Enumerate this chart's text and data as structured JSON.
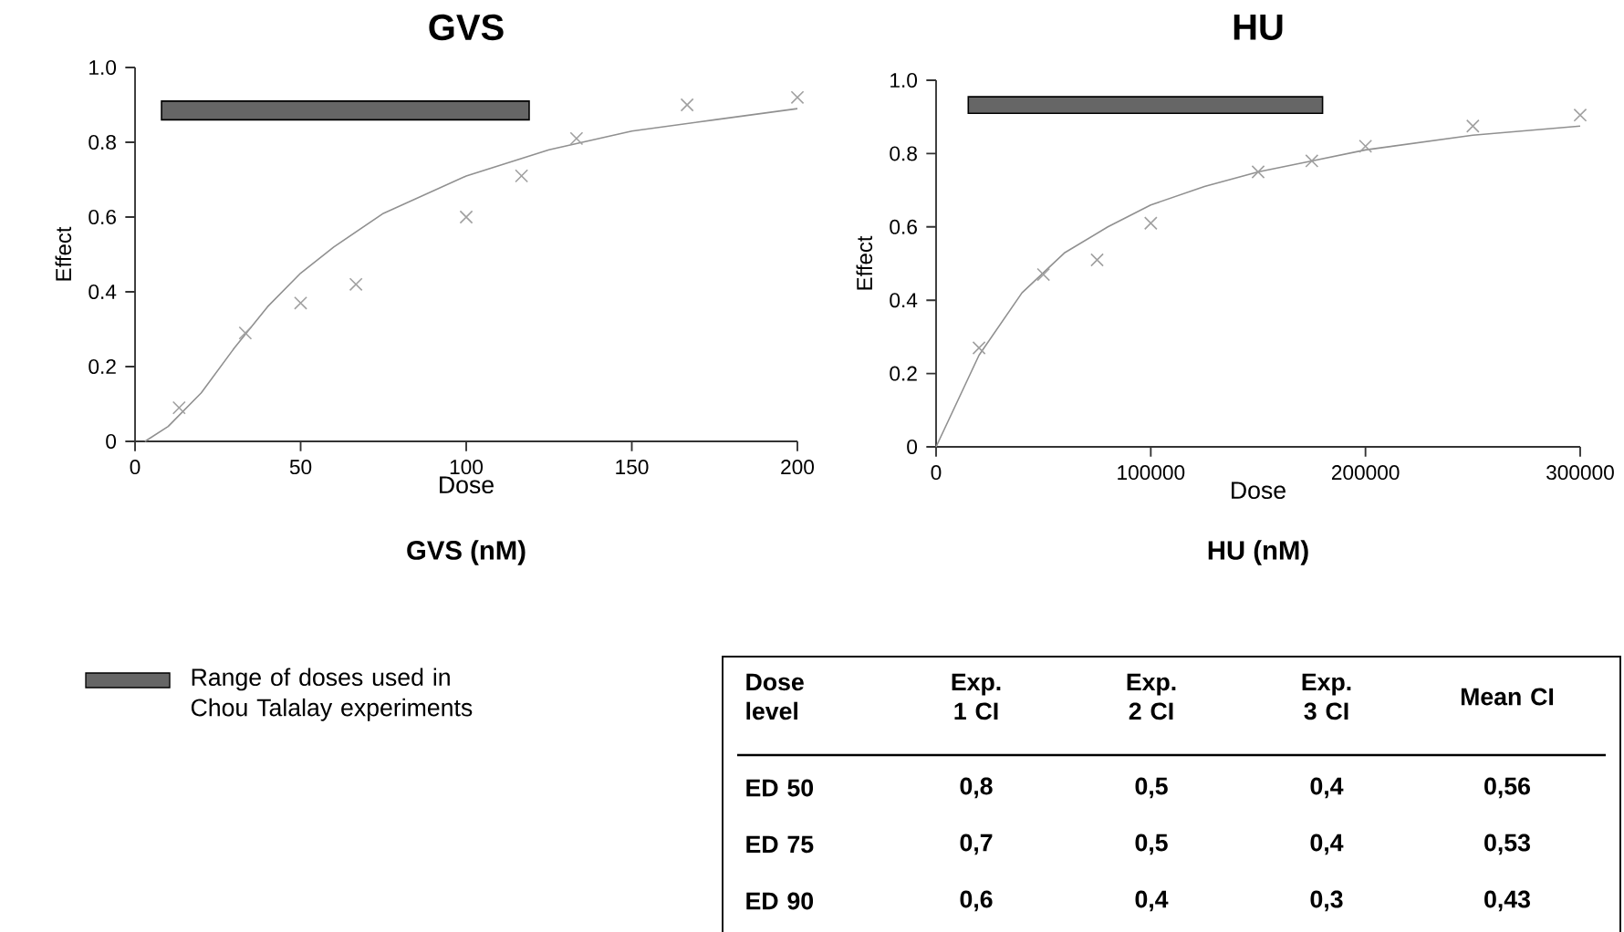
{
  "chart_data": [
    {
      "type": "scatter",
      "title": "GVS",
      "xlabel": "Dose",
      "ylabel": "Effect",
      "annotations": [
        "GVS (nM)"
      ],
      "xlim": [
        0,
        200
      ],
      "xticks": [
        0,
        50,
        100,
        150,
        200
      ],
      "ylim": [
        0,
        1
      ],
      "yticks": [
        0,
        0.2,
        0.4,
        0.6,
        0.8,
        {
          "value": 1,
          "label": "1.0"
        }
      ],
      "marker": "cross",
      "legend": "bottom",
      "bands": [
        {
          "axis": "x",
          "from": 8,
          "to": 119,
          "label": "Range of doses used in Chou Talalay experiments",
          "color": "#666666"
        }
      ],
      "series": [
        {
          "type": "scatter",
          "color": "#a0a0a0",
          "x": [
            13.3,
            33.3,
            50,
            66.7,
            100,
            116.7,
            133.3,
            166.7,
            200
          ],
          "values": [
            0.09,
            0.29,
            0.37,
            0.42,
            0.6,
            0.71,
            0.81,
            0.9,
            0.92
          ]
        },
        {
          "type": "line",
          "marker": "none",
          "color": "#909090",
          "x": [
            3,
            10,
            20,
            30,
            40,
            50,
            60,
            75,
            100,
            125,
            150,
            175,
            200
          ],
          "values": [
            0,
            0.04,
            0.13,
            0.25,
            0.36,
            0.45,
            0.52,
            0.61,
            0.71,
            0.78,
            0.83,
            0.86,
            0.89
          ]
        }
      ]
    },
    {
      "type": "scatter",
      "title": "HU",
      "xlabel": "Dose",
      "ylabel": "Effect",
      "annotations": [
        "HU (nM)"
      ],
      "xlim": [
        0,
        300000
      ],
      "xticks": [
        0,
        100000,
        200000,
        300000
      ],
      "ylim": [
        0,
        1
      ],
      "yticks": [
        0,
        0.2,
        0.4,
        0.6,
        0.8,
        {
          "value": 1,
          "label": "1.0"
        }
      ],
      "marker": "cross",
      "bands": [
        {
          "axis": "x",
          "from": 15000,
          "to": 180000,
          "color": "#666666"
        }
      ],
      "series": [
        {
          "type": "scatter",
          "color": "#a0a0a0",
          "x": [
            20000,
            50000,
            75000,
            100000,
            150000,
            175000,
            200000,
            250000,
            300000
          ],
          "values": [
            0.27,
            0.47,
            0.51,
            0.61,
            0.75,
            0.78,
            0.82,
            0.875,
            0.905
          ]
        },
        {
          "type": "line",
          "marker": "none",
          "color": "#909090",
          "x": [
            0,
            20000,
            40000,
            60000,
            80000,
            100000,
            125000,
            150000,
            175000,
            200000,
            250000,
            300000
          ],
          "values": [
            0,
            0.25,
            0.42,
            0.53,
            0.6,
            0.66,
            0.71,
            0.75,
            0.78,
            0.81,
            0.85,
            0.875
          ]
        }
      ]
    },
    {
      "type": "other",
      "annotations": [
        "Dose level",
        "Exp. 1 CI",
        "Exp. 2 CI",
        "Exp. 3 CI",
        "Mean CI",
        "ED 50",
        "0,8",
        "0,5",
        "0,4",
        "0,56",
        "ED 75",
        "0,7",
        "0,5",
        "0,4",
        "0,53",
        "ED 90",
        "0,6",
        "0,4",
        "0,3",
        "0,43"
      ]
    }
  ]
}
